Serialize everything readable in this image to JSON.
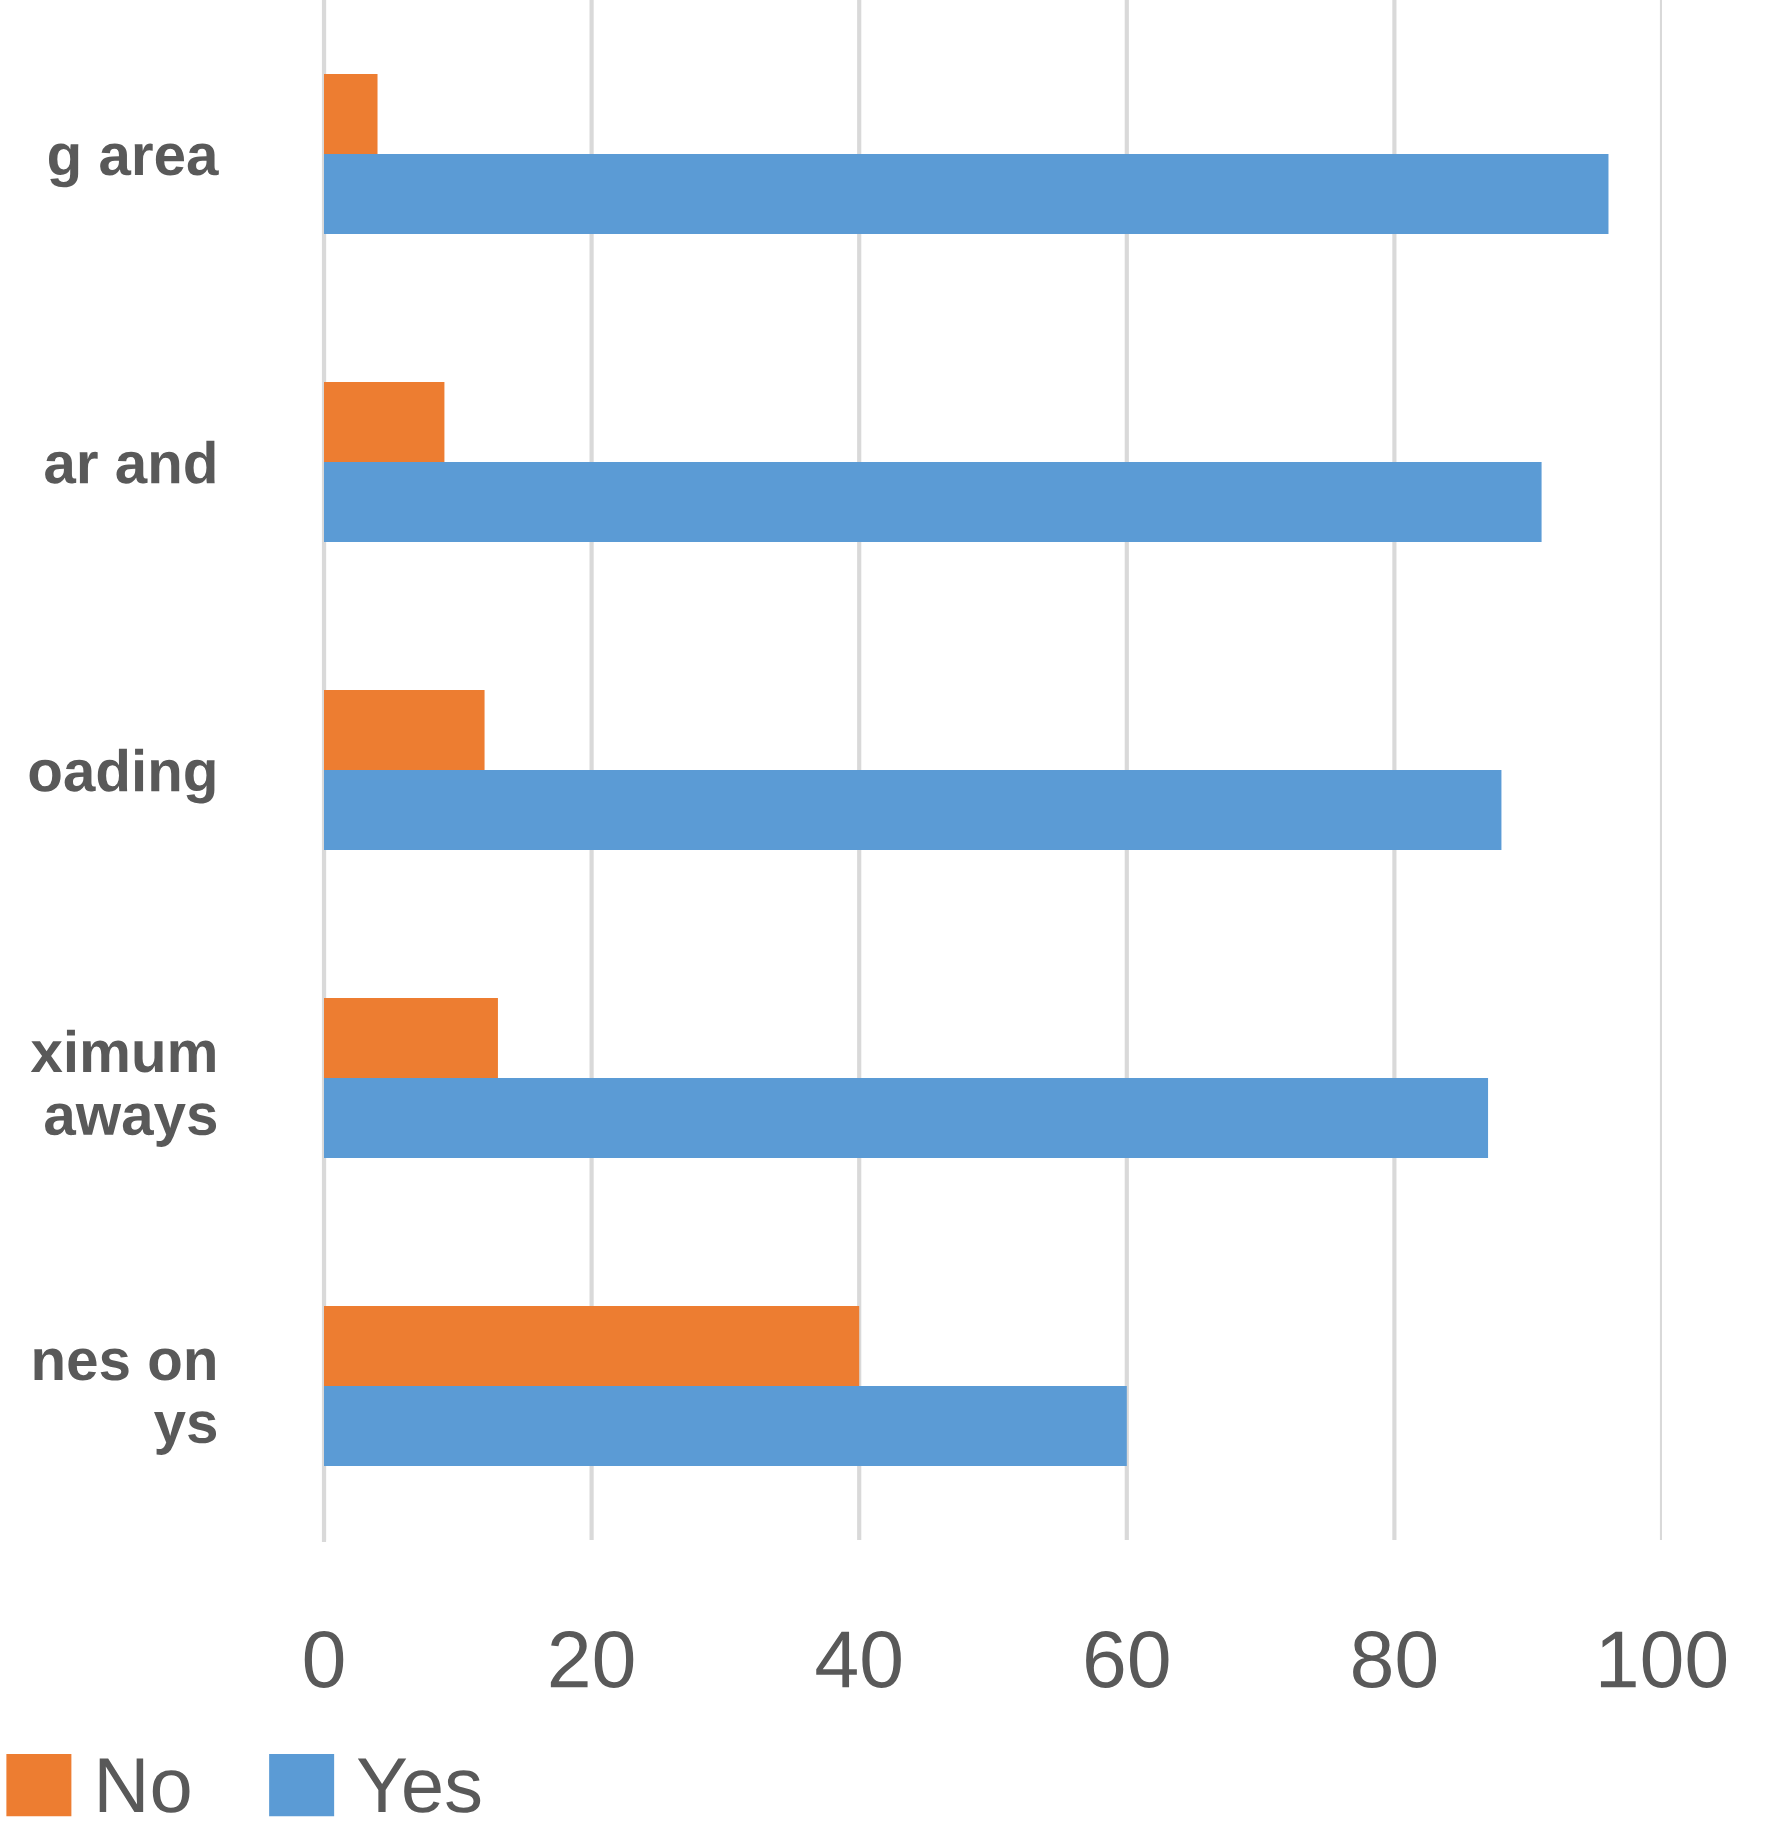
{
  "chart_data": {
    "type": "bar",
    "orientation": "horizontal",
    "categories": [
      "g area",
      "ar and",
      "oading",
      "ximum\naways",
      "nes on\nys"
    ],
    "series": [
      {
        "name": "No",
        "color": "#ed7d31",
        "values": [
          4,
          9,
          12,
          13,
          40
        ]
      },
      {
        "name": "Yes",
        "color": "#5b9bd5",
        "values": [
          96,
          91,
          88,
          87,
          60
        ]
      }
    ],
    "xlim": [
      0,
      100
    ],
    "xticks": [
      0,
      20,
      40,
      60,
      80,
      100
    ],
    "grid": "x",
    "legend": "bottom left"
  }
}
